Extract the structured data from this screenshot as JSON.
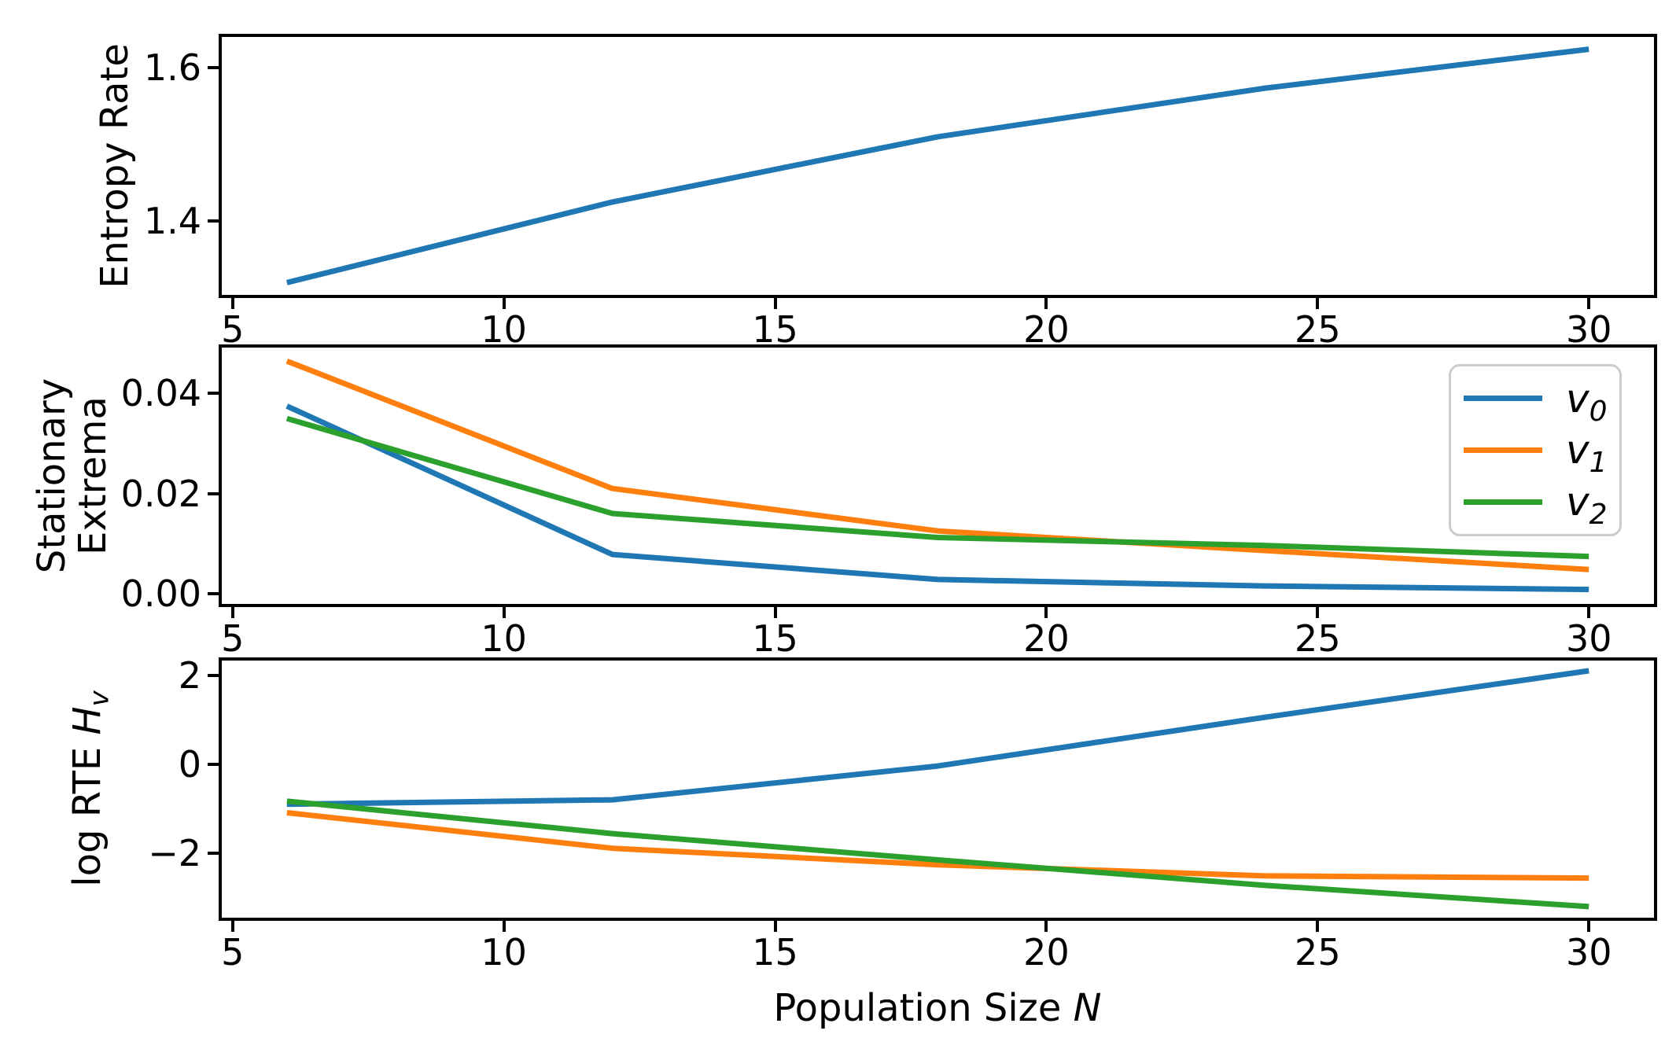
{
  "figure": {
    "xlabel_parts": {
      "text": "Population Size ",
      "symbol": "N"
    },
    "xlim": [
      4.8,
      31.2
    ],
    "xticks": {
      "values": [
        5,
        10,
        15,
        20,
        25,
        30
      ],
      "labels": [
        "5",
        "10",
        "15",
        "20",
        "25",
        "30"
      ]
    },
    "colors": {
      "v0": "#1f77b4",
      "v1": "#ff7f0e",
      "v2": "#2ca02c"
    },
    "legend": {
      "position": "upper right",
      "items": [
        {
          "base": "v",
          "sub": "0",
          "series": "v0",
          "color": "#1f77b4"
        },
        {
          "base": "v",
          "sub": "1",
          "series": "v1",
          "color": "#ff7f0e"
        },
        {
          "base": "v",
          "sub": "2",
          "series": "v2",
          "color": "#2ca02c"
        }
      ]
    }
  },
  "chart_data": [
    {
      "type": "line",
      "ylabel": "Entropy Rate",
      "x": [
        6,
        12,
        18,
        24,
        30
      ],
      "series": [
        {
          "name": "v0",
          "color": "#1f77b4",
          "values": [
            1.32,
            1.425,
            1.51,
            1.573,
            1.624
          ]
        }
      ],
      "xlim": [
        4.8,
        31.2
      ],
      "ylim": [
        1.304,
        1.64
      ],
      "yticks": {
        "values": [
          1.4,
          1.6
        ],
        "labels": [
          "1.4",
          "1.6"
        ]
      },
      "grid": false,
      "legend": false
    },
    {
      "type": "line",
      "ylabel_lines": [
        "Stationary",
        "Extrema"
      ],
      "x": [
        6,
        12,
        18,
        24,
        30
      ],
      "series": [
        {
          "name": "v0",
          "color": "#1f77b4",
          "values": [
            0.0375,
            0.0078,
            0.0028,
            0.0015,
            0.0008
          ]
        },
        {
          "name": "v1",
          "color": "#ff7f0e",
          "values": [
            0.0465,
            0.021,
            0.0125,
            0.0086,
            0.0048
          ]
        },
        {
          "name": "v2",
          "color": "#2ca02c",
          "values": [
            0.035,
            0.016,
            0.0112,
            0.0096,
            0.0074
          ]
        }
      ],
      "xlim": [
        4.8,
        31.2
      ],
      "ylim": [
        -0.0021,
        0.0492
      ],
      "yticks": {
        "values": [
          0.0,
          0.02,
          0.04
        ],
        "labels": [
          "0.00",
          "0.02",
          "0.04"
        ]
      },
      "grid": false,
      "legend": true
    },
    {
      "type": "line",
      "ylabel_parts": {
        "prefix": "log RTE ",
        "symbol": "H",
        "sub": "v"
      },
      "x": [
        6,
        12,
        18,
        24,
        30
      ],
      "series": [
        {
          "name": "v0",
          "color": "#1f77b4",
          "values": [
            -0.9,
            -0.8,
            -0.04,
            1.05,
            2.1
          ]
        },
        {
          "name": "v1",
          "color": "#ff7f0e",
          "values": [
            -1.09,
            -1.89,
            -2.26,
            -2.51,
            -2.56
          ]
        },
        {
          "name": "v2",
          "color": "#2ca02c",
          "values": [
            -0.83,
            -1.56,
            -2.15,
            -2.72,
            -3.2
          ]
        }
      ],
      "xlim": [
        4.8,
        31.2
      ],
      "ylim": [
        -3.45,
        2.33
      ],
      "yticks": {
        "values": [
          -2,
          0,
          2
        ],
        "labels": [
          "−2",
          "0",
          "2"
        ]
      },
      "grid": false,
      "legend": false
    }
  ]
}
